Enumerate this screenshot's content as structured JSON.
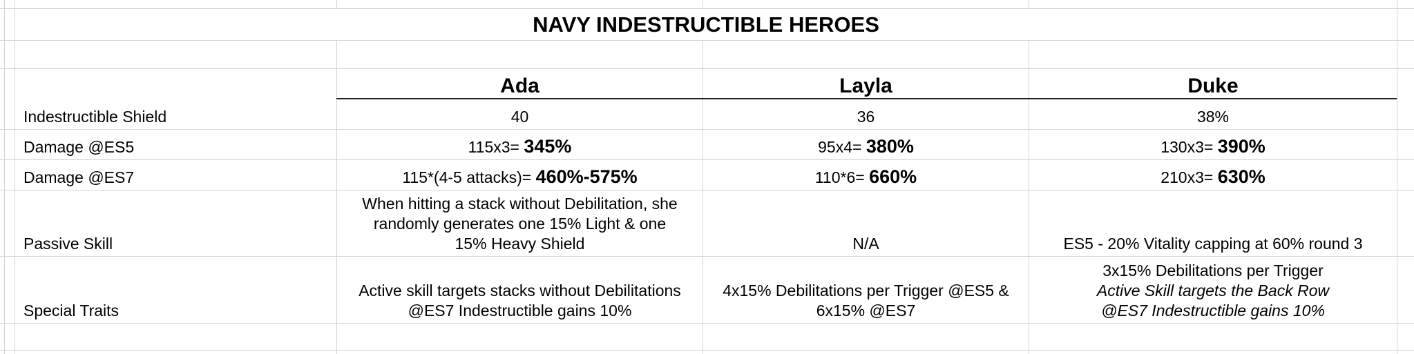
{
  "sheet": {
    "title": "NAVY INDESTRUCTIBLE HEROES",
    "columns": [
      "Ada",
      "Layla",
      "Duke"
    ],
    "rows": [
      {
        "label": "Indestructible Shield",
        "cells": [
          {
            "plain": "40",
            "bold": ""
          },
          {
            "plain": "36",
            "bold": ""
          },
          {
            "plain": "38%",
            "bold": ""
          }
        ]
      },
      {
        "label": "Damage @ES5",
        "cells": [
          {
            "plain": "115x3= ",
            "bold": "345%"
          },
          {
            "plain": "95x4= ",
            "bold": "380%"
          },
          {
            "plain": "130x3= ",
            "bold": "390%"
          }
        ]
      },
      {
        "label": "Damage @ES7",
        "cells": [
          {
            "plain": "115*(4-5 attacks)= ",
            "bold": "460%-575%"
          },
          {
            "plain": "110*6= ",
            "bold": "660%"
          },
          {
            "plain": "210x3= ",
            "bold": "630%"
          }
        ]
      },
      {
        "label": "Passive Skill",
        "cells": [
          {
            "lines": [
              "When hitting a stack without Debilitation, she",
              "randomly generates one 15% Light & one",
              "15% Heavy Shield"
            ]
          },
          {
            "lines": [
              "N/A"
            ]
          },
          {
            "lines": [
              "ES5 - 20% Vitality capping at 60% round 3"
            ]
          }
        ]
      },
      {
        "label": "Special Traits",
        "cells": [
          {
            "lines": [
              "Active skill targets stacks without Debilitations",
              "@ES7 Indestructible gains 10%"
            ]
          },
          {
            "lines": [
              "4x15% Debilitations per Trigger @ES5 &",
              "6x15% @ES7"
            ]
          },
          {
            "lines": [
              "3x15% Debilitations per Trigger"
            ],
            "italic_lines": [
              "Active Skill targets the Back Row",
              "@ES7 Indestructible gains 10%"
            ]
          }
        ]
      }
    ]
  }
}
